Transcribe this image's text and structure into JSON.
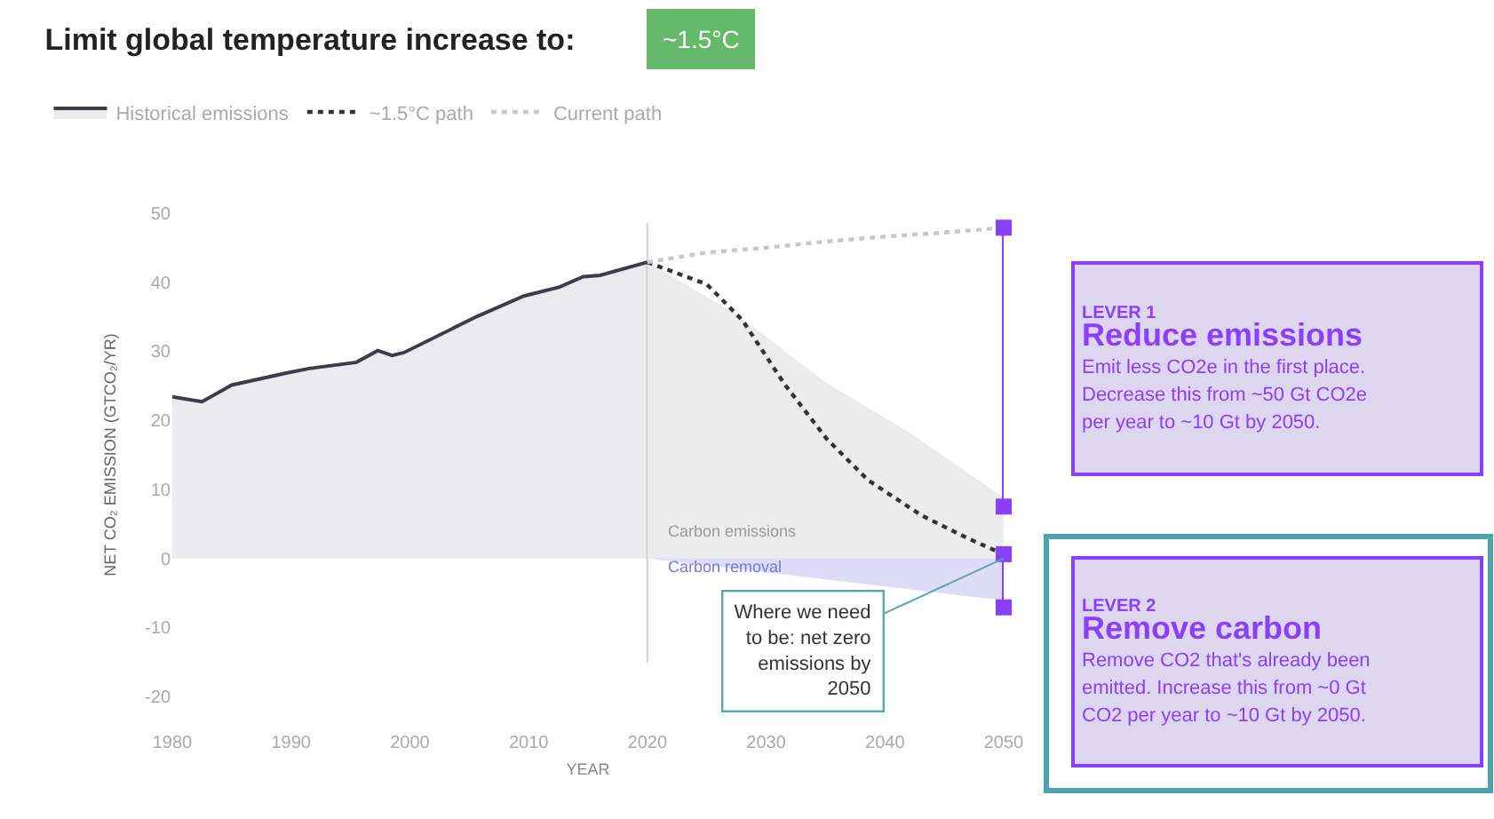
{
  "chart_data": {
    "type": "line",
    "title": "Limit global temperature increase to:",
    "subtitle": "~1.5°C",
    "xlabel": "YEAR",
    "ylabel": "NET CO₂ EMISSION (GTCO₂/YR)",
    "xlim": [
      1980,
      2050
    ],
    "ylim": [
      -20,
      50
    ],
    "xticks": [
      1980,
      1990,
      2000,
      2010,
      2020,
      2030,
      2040,
      2050
    ],
    "yticks": [
      -20,
      -10,
      0,
      10,
      20,
      30,
      40,
      50
    ],
    "grid": false,
    "legend": "top left",
    "series": [
      {
        "type": "area",
        "color": "#ececec",
        "x": [
          2020,
          2027.5,
          2035,
          2042,
          2050
        ],
        "values": [
          42.9,
          35.4,
          25.5,
          18.3,
          8.8
        ]
      },
      {
        "type": "area",
        "color": "#dedcf6",
        "x": [
          2020,
          2050
        ],
        "values": [
          0,
          -6.1
        ]
      },
      {
        "type": "area",
        "name": "Historical emissions",
        "color": "#3d3d4a",
        "line_style": "solid",
        "x": [
          1980,
          1982.5,
          1985,
          1989.5,
          1991.5,
          1995.5,
          1997.3,
          1998.5,
          1999.5,
          2005.6,
          2009.6,
          2012.6,
          2014.6,
          2016,
          2020
        ],
        "values": [
          23.4,
          22.7,
          25.1,
          26.8,
          27.5,
          28.4,
          30.1,
          29.4,
          29.8,
          35.0,
          38.0,
          39.3,
          40.8,
          41.0,
          42.9
        ]
      },
      {
        "name": "~1.5°C path",
        "color": "#333333",
        "line_style": "dotted",
        "x": [
          2020,
          2025,
          2028,
          2031.6,
          2035.1,
          2038.6,
          2043.1,
          2047.1,
          2050
        ],
        "values": [
          42.9,
          39.7,
          34.5,
          25.1,
          17.3,
          11.3,
          6.2,
          2.8,
          0.6
        ]
      },
      {
        "name": "Current path",
        "color": "#c8c8c8",
        "line_style": "dotted",
        "x": [
          2020,
          2025,
          2030,
          2035,
          2040,
          2045,
          2050
        ],
        "values": [
          42.9,
          44.3,
          45.0,
          45.9,
          46.6,
          47.2,
          47.9
        ]
      },
      {
        "color": "#8a3ffc",
        "marker": "square",
        "line_style": "solid",
        "x": [
          2050,
          2050
        ],
        "values": [
          47.9,
          7.5
        ]
      },
      {
        "color": "#8a3ffc",
        "marker": "square",
        "line_style": "solid",
        "x": [
          2050,
          2050
        ],
        "values": [
          0.6,
          -7.1
        ]
      }
    ],
    "ref_lines": [
      {
        "axis": "x",
        "value": 2020,
        "color": "#d6d6d6"
      }
    ],
    "annotations": [
      "LEVER 1\nReduce emissions\nEmit less CO2e in the first place.\nDecrease this from ~50 Gt CO2e\nper year to ~10 Gt by 2050.",
      "LEVER 2\nRemove carbon\nRemove CO2 that's already been\nemitted. Increase this from ~0 Gt\nCO2 per year to ~10 Gt by 2050.",
      "Carbon emissions",
      "Carbon removal",
      {
        "text": "Where we need\nto be: net zero\nemissions by\n2050",
        "x": 2050,
        "y": 0
      }
    ]
  }
}
